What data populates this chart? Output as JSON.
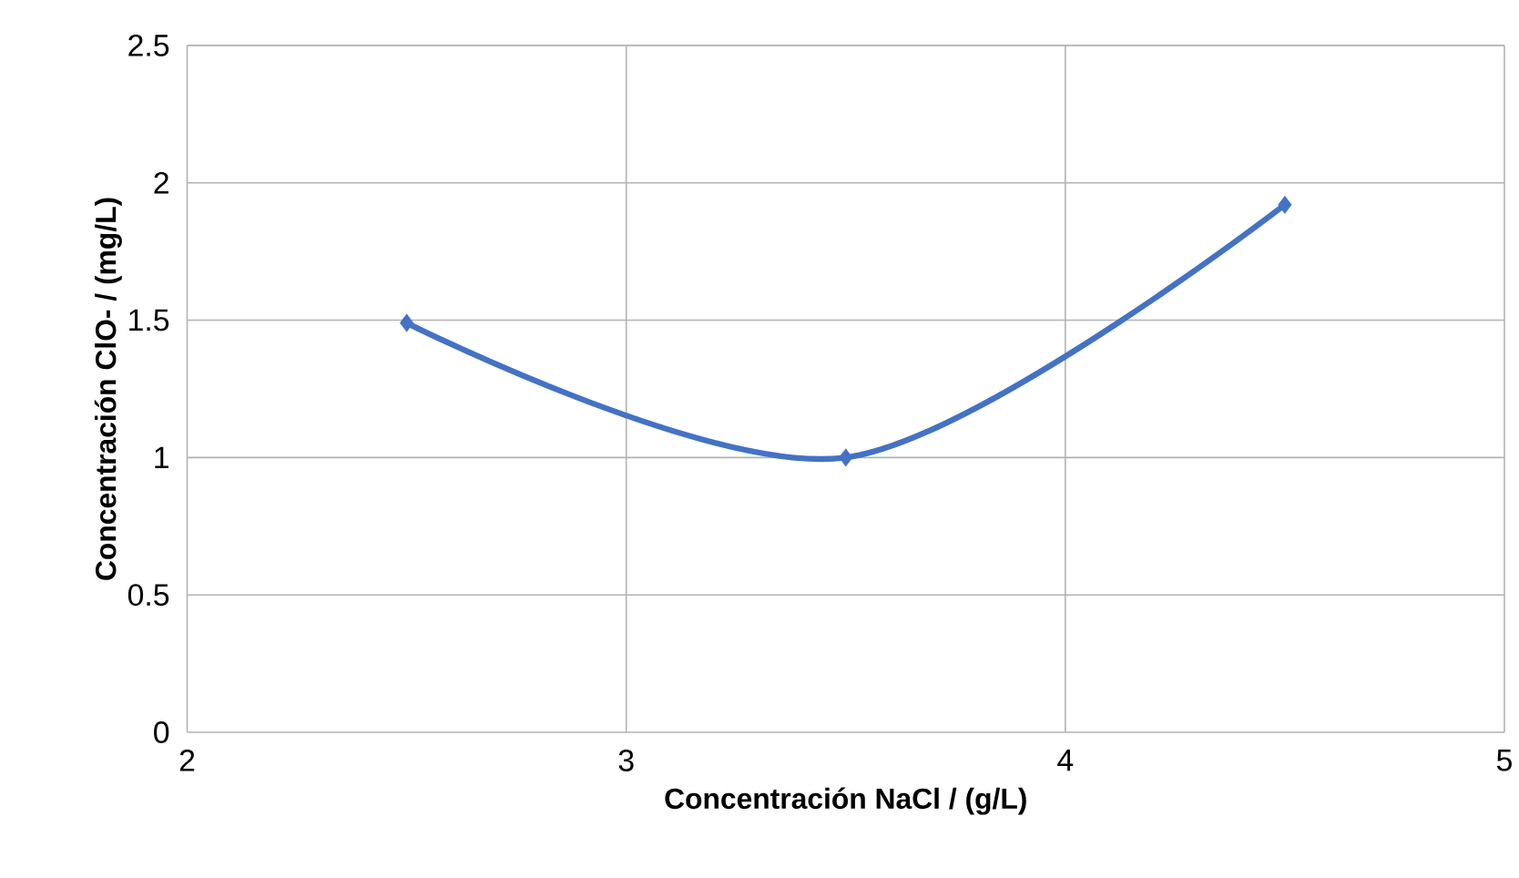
{
  "chart_data": {
    "type": "line",
    "xlabel": "Concentración NaCl / (g/L)",
    "ylabel": "Concentración ClO- / (mg/L)",
    "x": [
      2.5,
      3.5,
      4.5
    ],
    "series": [
      {
        "color": "#4472c4",
        "values": [
          1.49,
          1.0,
          1.92
        ]
      }
    ],
    "xlim": [
      2,
      5
    ],
    "ylim": [
      0,
      2.5
    ],
    "xticks": [
      2,
      3,
      4,
      5
    ],
    "yticks": [
      0,
      0.5,
      1,
      1.5,
      2,
      2.5
    ],
    "grid": true,
    "marker": "diamond",
    "line_style": "solid"
  }
}
